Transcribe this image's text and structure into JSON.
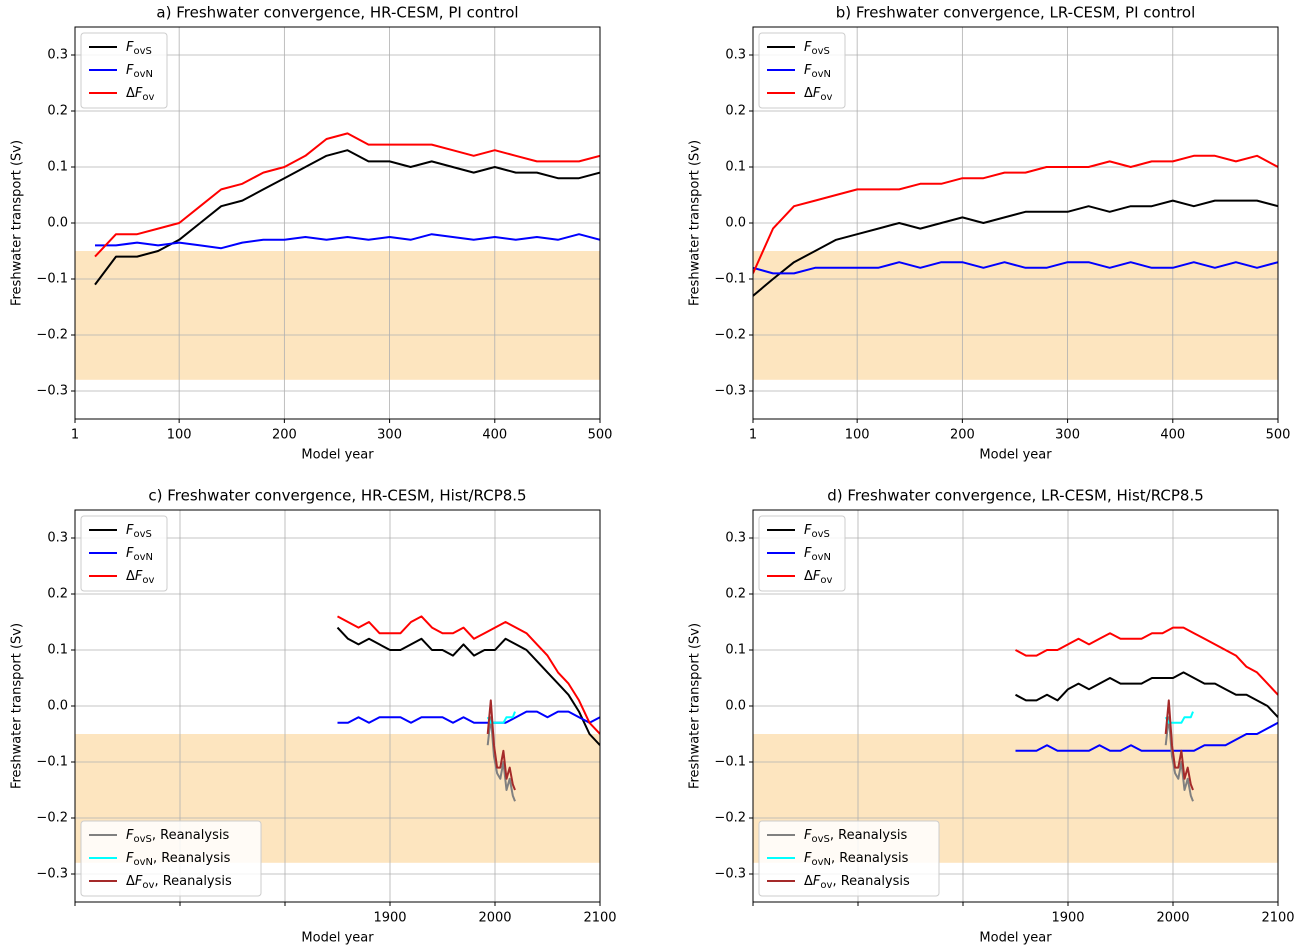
{
  "chart_data": [
    {
      "type": "line",
      "title": "a) Freshwater convergence, HR-CESM, PI control",
      "xlabel": "Model year",
      "ylabel": "Freshwater transport (Sv)",
      "xlim": [
        1,
        500
      ],
      "xticks": [
        1,
        100,
        200,
        300,
        400,
        500
      ],
      "ylim": [
        -0.35,
        0.35
      ],
      "yticks": [
        {
          "value": -0.3,
          "label": "−0.3"
        },
        {
          "value": -0.2,
          "label": "−0.2"
        },
        {
          "value": -0.1,
          "label": "−0.1"
        },
        {
          "value": 0,
          "label": "0.0"
        },
        0.1,
        0.2,
        0.3
      ],
      "grid": true,
      "shading": {
        "ymin": -0.28,
        "ymax": -0.05,
        "color": "#fde5bf"
      },
      "x": [
        20,
        40,
        60,
        80,
        100,
        120,
        140,
        160,
        180,
        200,
        220,
        240,
        260,
        280,
        300,
        320,
        340,
        360,
        380,
        400,
        420,
        440,
        460,
        480,
        500
      ],
      "series": [
        {
          "name": "FovS",
          "color": "#000000",
          "legend": "upper left",
          "values": [
            -0.11,
            -0.06,
            -0.06,
            -0.05,
            -0.03,
            0.0,
            0.03,
            0.04,
            0.06,
            0.08,
            0.1,
            0.12,
            0.13,
            0.11,
            0.11,
            0.1,
            0.11,
            0.1,
            0.09,
            0.1,
            0.09,
            0.09,
            0.08,
            0.08,
            0.09
          ]
        },
        {
          "name": "FovN",
          "color": "#0000ff",
          "legend": "upper left",
          "values": [
            -0.04,
            -0.04,
            -0.035,
            -0.04,
            -0.035,
            -0.04,
            -0.045,
            -0.035,
            -0.03,
            -0.03,
            -0.025,
            -0.03,
            -0.025,
            -0.03,
            -0.025,
            -0.03,
            -0.02,
            -0.025,
            -0.03,
            -0.025,
            -0.03,
            -0.025,
            -0.03,
            -0.02,
            -0.03
          ]
        },
        {
          "name": "ΔFov",
          "color": "#ff0000",
          "legend": "upper left",
          "values": [
            -0.06,
            -0.02,
            -0.02,
            -0.01,
            0.0,
            0.03,
            0.06,
            0.07,
            0.09,
            0.1,
            0.12,
            0.15,
            0.16,
            0.14,
            0.14,
            0.14,
            0.14,
            0.13,
            0.12,
            0.13,
            0.12,
            0.11,
            0.11,
            0.11,
            0.12
          ]
        }
      ]
    },
    {
      "type": "line",
      "title": "b) Freshwater convergence, LR-CESM, PI control",
      "xlabel": "Model year",
      "ylabel": "Freshwater transport (Sv)",
      "xlim": [
        1,
        500
      ],
      "xticks": [
        1,
        100,
        200,
        300,
        400,
        500
      ],
      "ylim": [
        -0.35,
        0.35
      ],
      "yticks": [
        {
          "value": -0.3,
          "label": "−0.3"
        },
        {
          "value": -0.2,
          "label": "−0.2"
        },
        {
          "value": -0.1,
          "label": "−0.1"
        },
        {
          "value": 0,
          "label": "0.0"
        },
        0.1,
        0.2,
        0.3
      ],
      "grid": true,
      "shading": {
        "ymin": -0.28,
        "ymax": -0.05,
        "color": "#fde5bf"
      },
      "x": [
        1,
        20,
        40,
        60,
        80,
        100,
        120,
        140,
        160,
        180,
        200,
        220,
        240,
        260,
        280,
        300,
        320,
        340,
        360,
        380,
        400,
        420,
        440,
        460,
        480,
        500
      ],
      "series": [
        {
          "name": "FovS",
          "color": "#000000",
          "legend": "upper left",
          "values": [
            -0.13,
            -0.1,
            -0.07,
            -0.05,
            -0.03,
            -0.02,
            -0.01,
            0.0,
            -0.01,
            0.0,
            0.01,
            0.0,
            0.01,
            0.02,
            0.02,
            0.02,
            0.03,
            0.02,
            0.03,
            0.03,
            0.04,
            0.03,
            0.04,
            0.04,
            0.04,
            0.03
          ]
        },
        {
          "name": "FovN",
          "color": "#0000ff",
          "legend": "upper left",
          "values": [
            -0.08,
            -0.09,
            -0.09,
            -0.08,
            -0.08,
            -0.08,
            -0.08,
            -0.07,
            -0.08,
            -0.07,
            -0.07,
            -0.08,
            -0.07,
            -0.08,
            -0.08,
            -0.07,
            -0.07,
            -0.08,
            -0.07,
            -0.08,
            -0.08,
            -0.07,
            -0.08,
            -0.07,
            -0.08,
            -0.07
          ]
        },
        {
          "name": "ΔFov",
          "color": "#ff0000",
          "legend": "upper left",
          "values": [
            -0.09,
            -0.01,
            0.03,
            0.04,
            0.05,
            0.06,
            0.06,
            0.06,
            0.07,
            0.07,
            0.08,
            0.08,
            0.09,
            0.09,
            0.1,
            0.1,
            0.1,
            0.11,
            0.1,
            0.11,
            0.11,
            0.12,
            0.12,
            0.11,
            0.12,
            0.1
          ]
        }
      ]
    },
    {
      "type": "line",
      "title": "c) Freshwater convergence, HR-CESM, Hist/RCP8.5",
      "xlabel": "Model year",
      "ylabel": "Freshwater transport (Sv)",
      "xlim": [
        1600,
        2100
      ],
      "xticks": [
        {
          "value": 1600,
          "label": null
        },
        {
          "value": 1700,
          "label": null
        },
        {
          "value": 1800,
          "label": null
        },
        1900,
        2000,
        2100
      ],
      "ylim": [
        -0.35,
        0.35
      ],
      "yticks": [
        {
          "value": -0.3,
          "label": "−0.3"
        },
        {
          "value": -0.2,
          "label": "−0.2"
        },
        {
          "value": -0.1,
          "label": "−0.1"
        },
        {
          "value": 0,
          "label": "0.0"
        },
        0.1,
        0.2,
        0.3
      ],
      "grid": true,
      "shading": {
        "ymin": -0.28,
        "ymax": -0.05,
        "color": "#fde5bf"
      },
      "x": [
        1850,
        1860,
        1870,
        1880,
        1890,
        1900,
        1910,
        1920,
        1930,
        1940,
        1950,
        1960,
        1970,
        1980,
        1990,
        2000,
        2010,
        2020,
        2030,
        2040,
        2050,
        2060,
        2070,
        2080,
        2090,
        2100
      ],
      "series": [
        {
          "name": "FovS",
          "color": "#000000",
          "legend": "upper left",
          "values": [
            0.14,
            0.12,
            0.11,
            0.12,
            0.11,
            0.1,
            0.1,
            0.11,
            0.12,
            0.1,
            0.1,
            0.09,
            0.11,
            0.09,
            0.1,
            0.1,
            0.12,
            0.11,
            0.1,
            0.08,
            0.06,
            0.04,
            0.02,
            -0.01,
            -0.05,
            -0.07
          ]
        },
        {
          "name": "FovN",
          "color": "#0000ff",
          "legend": "upper left",
          "values": [
            -0.03,
            -0.03,
            -0.02,
            -0.03,
            -0.02,
            -0.02,
            -0.02,
            -0.03,
            -0.02,
            -0.02,
            -0.02,
            -0.03,
            -0.02,
            -0.03,
            -0.03,
            -0.03,
            -0.03,
            -0.02,
            -0.01,
            -0.01,
            -0.02,
            -0.01,
            -0.01,
            -0.02,
            -0.03,
            -0.02
          ]
        },
        {
          "name": "ΔFov",
          "color": "#ff0000",
          "legend": "upper left",
          "values": [
            0.16,
            0.15,
            0.14,
            0.15,
            0.13,
            0.13,
            0.13,
            0.15,
            0.16,
            0.14,
            0.13,
            0.13,
            0.14,
            0.12,
            0.13,
            0.14,
            0.15,
            0.14,
            0.13,
            0.11,
            0.09,
            0.06,
            0.04,
            0.01,
            -0.03,
            -0.05
          ]
        },
        {
          "name": "FovS, Reanalysis",
          "color": "#808080",
          "legend": "lower left",
          "x": [
            1993,
            1996,
            1999,
            2002,
            2005,
            2008,
            2011,
            2014,
            2017,
            2019
          ],
          "values": [
            -0.07,
            -0.02,
            -0.09,
            -0.12,
            -0.13,
            -0.1,
            -0.15,
            -0.13,
            -0.16,
            -0.17
          ]
        },
        {
          "name": "FovN, Reanalysis",
          "color": "#00ffff",
          "legend": "lower left",
          "x": [
            1993,
            1996,
            1999,
            2002,
            2005,
            2008,
            2011,
            2014,
            2017,
            2019
          ],
          "values": [
            -0.02,
            -0.03,
            -0.03,
            -0.03,
            -0.03,
            -0.03,
            -0.02,
            -0.02,
            -0.02,
            -0.01
          ]
        },
        {
          "name": "ΔFov, Reanalysis",
          "color": "#a52a2a",
          "legend": "lower left",
          "x": [
            1993,
            1996,
            1999,
            2002,
            2005,
            2008,
            2011,
            2014,
            2017,
            2019
          ],
          "values": [
            -0.05,
            0.01,
            -0.07,
            -0.11,
            -0.11,
            -0.08,
            -0.13,
            -0.11,
            -0.14,
            -0.15
          ]
        }
      ]
    },
    {
      "type": "line",
      "title": "d) Freshwater convergence, LR-CESM, Hist/RCP8.5",
      "xlabel": "Model year",
      "ylabel": "Freshwater transport (Sv)",
      "xlim": [
        1600,
        2100
      ],
      "xticks": [
        {
          "value": 1600,
          "label": null
        },
        {
          "value": 1700,
          "label": null
        },
        {
          "value": 1800,
          "label": null
        },
        1900,
        2000,
        2100
      ],
      "ylim": [
        -0.35,
        0.35
      ],
      "yticks": [
        {
          "value": -0.3,
          "label": "−0.3"
        },
        {
          "value": -0.2,
          "label": "−0.2"
        },
        {
          "value": -0.1,
          "label": "−0.1"
        },
        {
          "value": 0,
          "label": "0.0"
        },
        0.1,
        0.2,
        0.3
      ],
      "grid": true,
      "shading": {
        "ymin": -0.28,
        "ymax": -0.05,
        "color": "#fde5bf"
      },
      "x": [
        1850,
        1860,
        1870,
        1880,
        1890,
        1900,
        1910,
        1920,
        1930,
        1940,
        1950,
        1960,
        1970,
        1980,
        1990,
        2000,
        2010,
        2020,
        2030,
        2040,
        2050,
        2060,
        2070,
        2080,
        2090,
        2100
      ],
      "series": [
        {
          "name": "FovS",
          "color": "#000000",
          "legend": "upper left",
          "values": [
            0.02,
            0.01,
            0.01,
            0.02,
            0.01,
            0.03,
            0.04,
            0.03,
            0.04,
            0.05,
            0.04,
            0.04,
            0.04,
            0.05,
            0.05,
            0.05,
            0.06,
            0.05,
            0.04,
            0.04,
            0.03,
            0.02,
            0.02,
            0.01,
            0.0,
            -0.02
          ]
        },
        {
          "name": "FovN",
          "color": "#0000ff",
          "legend": "upper left",
          "values": [
            -0.08,
            -0.08,
            -0.08,
            -0.07,
            -0.08,
            -0.08,
            -0.08,
            -0.08,
            -0.07,
            -0.08,
            -0.08,
            -0.07,
            -0.08,
            -0.08,
            -0.08,
            -0.08,
            -0.08,
            -0.08,
            -0.07,
            -0.07,
            -0.07,
            -0.06,
            -0.05,
            -0.05,
            -0.04,
            -0.03
          ]
        },
        {
          "name": "ΔFov",
          "color": "#ff0000",
          "legend": "upper left",
          "values": [
            0.1,
            0.09,
            0.09,
            0.1,
            0.1,
            0.11,
            0.12,
            0.11,
            0.12,
            0.13,
            0.12,
            0.12,
            0.12,
            0.13,
            0.13,
            0.14,
            0.14,
            0.13,
            0.12,
            0.11,
            0.1,
            0.09,
            0.07,
            0.06,
            0.04,
            0.02
          ]
        },
        {
          "name": "FovS, Reanalysis",
          "color": "#808080",
          "legend": "lower left",
          "x": [
            1993,
            1996,
            1999,
            2002,
            2005,
            2008,
            2011,
            2014,
            2017,
            2019
          ],
          "values": [
            -0.07,
            -0.02,
            -0.09,
            -0.12,
            -0.13,
            -0.1,
            -0.15,
            -0.13,
            -0.16,
            -0.17
          ]
        },
        {
          "name": "FovN, Reanalysis",
          "color": "#00ffff",
          "legend": "lower left",
          "x": [
            1993,
            1996,
            1999,
            2002,
            2005,
            2008,
            2011,
            2014,
            2017,
            2019
          ],
          "values": [
            -0.02,
            -0.03,
            -0.03,
            -0.03,
            -0.03,
            -0.03,
            -0.02,
            -0.02,
            -0.02,
            -0.01
          ]
        },
        {
          "name": "ΔFov, Reanalysis",
          "color": "#a52a2a",
          "legend": "lower left",
          "x": [
            1993,
            1996,
            1999,
            2002,
            2005,
            2008,
            2011,
            2014,
            2017,
            2019
          ],
          "values": [
            -0.05,
            0.01,
            -0.07,
            -0.11,
            -0.11,
            -0.08,
            -0.13,
            -0.11,
            -0.14,
            -0.15
          ]
        }
      ]
    }
  ]
}
